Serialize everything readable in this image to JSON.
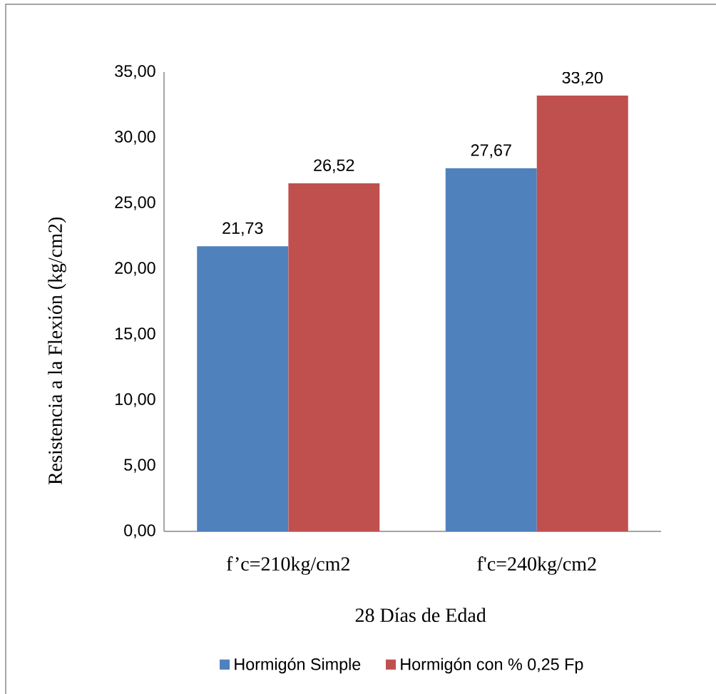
{
  "chart_data": {
    "type": "bar",
    "categories": [
      "f’c=210kg/cm2",
      "f'c=240kg/cm2"
    ],
    "xlabel": "28 Días de Edad",
    "ylabel": "Resistencia a la Flexión (kg/cm2)",
    "series": [
      {
        "name": "Hormigón Simple",
        "color": "#4f81bd",
        "values": [
          21.73,
          27.67
        ],
        "value_labels": [
          "21,73",
          "27,67"
        ]
      },
      {
        "name": "Hormigón con % 0,25 Fp",
        "color": "#c0504d",
        "values": [
          26.52,
          33.2
        ],
        "value_labels": [
          "26,52",
          "33,20"
        ]
      }
    ],
    "ylim": [
      0,
      35
    ],
    "yticks": [
      {
        "value": 0,
        "label": "0,00"
      },
      {
        "value": 5,
        "label": "5,00"
      },
      {
        "value": 10,
        "label": "10,00"
      },
      {
        "value": 15,
        "label": "15,00"
      },
      {
        "value": 20,
        "label": "20,00"
      },
      {
        "value": 25,
        "label": "25,00"
      },
      {
        "value": 30,
        "label": "30,00"
      },
      {
        "value": 35,
        "label": "35,00"
      }
    ],
    "grid": false,
    "legend": "bottom"
  }
}
